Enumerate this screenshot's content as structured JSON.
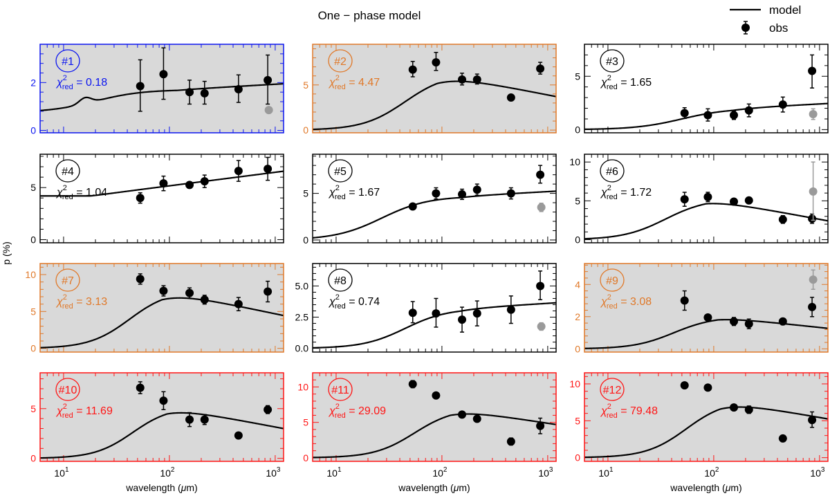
{
  "figure": {
    "title": "One − phase model",
    "ylabel": "p (%)",
    "xlabel_prefix": "wavelength (",
    "xlabel_mu": "μ",
    "xlabel_suffix": "m)",
    "legend": {
      "model": "model",
      "obs": "obs"
    },
    "chi_sub": "red",
    "xtick_labels": [
      {
        "base": "10",
        "exp": "1"
      },
      {
        "base": "10",
        "exp": "2"
      },
      {
        "base": "10",
        "exp": "3"
      }
    ]
  },
  "colors": {
    "blue": "#0a14f0",
    "orange": "#e07828",
    "red": "#ff1414",
    "black": "#000000",
    "gray": "#9a9a9a",
    "panel_bg": "#d9d9d9"
  },
  "chart_data": {
    "type": "scatter+line",
    "x_scale": "log",
    "xlim": [
      6,
      1200
    ],
    "x_ticks": [
      10,
      100,
      1000
    ],
    "panels": [
      {
        "id": "#1",
        "chi2": "0.18",
        "color": "blue",
        "shaded": true,
        "ylim": [
          -0.1,
          3.6
        ],
        "yticks": [
          0,
          2
        ],
        "ytick_labels": [
          "0",
          "2"
        ],
        "model": {
          "onset": 20,
          "width": 0.22,
          "plateau": 0.75,
          "bump_at": 16,
          "bump_h": 0.25,
          "peak": 1.7,
          "peak_at": 120,
          "late_slope": 0.25
        },
        "obs": [
          {
            "x": 53,
            "y": 1.85,
            "elo": 1.05,
            "ehi": 1.1
          },
          {
            "x": 88,
            "y": 2.35,
            "elo": 1.05,
            "ehi": 1.1
          },
          {
            "x": 155,
            "y": 1.6,
            "elo": 0.5,
            "ehi": 0.5
          },
          {
            "x": 215,
            "y": 1.55,
            "elo": 0.45,
            "ehi": 0.5
          },
          {
            "x": 450,
            "y": 1.72,
            "elo": 0.55,
            "ehi": 0.6
          },
          {
            "x": 850,
            "y": 2.1,
            "elo": 1.0,
            "ehi": 1.05
          },
          {
            "x": 870,
            "y": 0.85,
            "elo": 0,
            "ehi": 0,
            "gray": true
          }
        ]
      },
      {
        "id": "#2",
        "chi2": "4.47",
        "color": "orange",
        "shaded": true,
        "ylim": [
          -0.3,
          9.5
        ],
        "yticks": [
          0,
          5
        ],
        "ytick_labels": [
          "0",
          "5"
        ],
        "model": {
          "onset": 45,
          "width": 0.2,
          "plateau": 0,
          "bump_at": 0,
          "bump_h": 0,
          "peak": 6.3,
          "peak_at": 90,
          "late_slope": -2.3
        },
        "obs": [
          {
            "x": 53,
            "y": 6.7,
            "elo": 0.8,
            "ehi": 0.9
          },
          {
            "x": 88,
            "y": 7.5,
            "elo": 0.9,
            "ehi": 1.1
          },
          {
            "x": 155,
            "y": 5.6,
            "elo": 0.6,
            "ehi": 0.7
          },
          {
            "x": 215,
            "y": 5.6,
            "elo": 0.5,
            "ehi": 0.6
          },
          {
            "x": 450,
            "y": 3.6,
            "elo": 0.3,
            "ehi": 0.3
          },
          {
            "x": 850,
            "y": 6.8,
            "elo": 0.6,
            "ehi": 0.7
          }
        ]
      },
      {
        "id": "#3",
        "chi2": "1.65",
        "color": "black",
        "shaded": false,
        "ylim": [
          -0.3,
          8.0
        ],
        "yticks": [
          0,
          5
        ],
        "ytick_labels": [
          "0",
          "5"
        ],
        "model": {
          "onset": 50,
          "width": 0.22,
          "plateau": 0,
          "bump_at": 0,
          "bump_h": 0,
          "peak": 2.0,
          "peak_at": 150,
          "late_slope": 0.5
        },
        "obs": [
          {
            "x": 53,
            "y": 1.55,
            "elo": 0.5,
            "ehi": 0.5
          },
          {
            "x": 88,
            "y": 1.35,
            "elo": 0.55,
            "ehi": 0.6
          },
          {
            "x": 155,
            "y": 1.35,
            "elo": 0.4,
            "ehi": 0.4
          },
          {
            "x": 215,
            "y": 1.8,
            "elo": 0.6,
            "ehi": 0.6
          },
          {
            "x": 450,
            "y": 2.35,
            "elo": 0.7,
            "ehi": 0.7
          },
          {
            "x": 850,
            "y": 5.5,
            "elo": 1.6,
            "ehi": 1.5
          },
          {
            "x": 870,
            "y": 1.45,
            "elo": 0.5,
            "ehi": 0.5,
            "gray": true
          }
        ]
      },
      {
        "id": "#4",
        "chi2": "1.04",
        "color": "black",
        "shaded": false,
        "ylim": [
          -0.3,
          8.2
        ],
        "yticks": [
          0,
          5
        ],
        "ytick_labels": [
          "0",
          "5"
        ],
        "model": {
          "onset": 13,
          "width": 0.1,
          "plateau": 4.2,
          "bump_at": 0,
          "bump_h": 0,
          "peak": 4.2,
          "peak_at": 18,
          "late_slope": 1.3
        },
        "obs": [
          {
            "x": 53,
            "y": 4.0,
            "elo": 0.5,
            "ehi": 0.5
          },
          {
            "x": 88,
            "y": 5.4,
            "elo": 0.7,
            "ehi": 0.7
          },
          {
            "x": 155,
            "y": 5.25,
            "elo": 0.3,
            "ehi": 0.3
          },
          {
            "x": 215,
            "y": 5.6,
            "elo": 0.6,
            "ehi": 0.6
          },
          {
            "x": 450,
            "y": 6.6,
            "elo": 1.0,
            "ehi": 1.0
          },
          {
            "x": 850,
            "y": 6.8,
            "elo": 1.1,
            "ehi": 1.1
          }
        ]
      },
      {
        "id": "#5",
        "chi2": "1.67",
        "color": "black",
        "shaded": false,
        "ylim": [
          -0.3,
          9.2
        ],
        "yticks": [
          0,
          5
        ],
        "ytick_labels": [
          "0",
          "5"
        ],
        "model": {
          "onset": 27,
          "width": 0.22,
          "plateau": 0,
          "bump_at": 0,
          "bump_h": 0,
          "peak": 4.7,
          "peak_at": 150,
          "late_slope": 0.6
        },
        "obs": [
          {
            "x": 53,
            "y": 3.6,
            "elo": 0.2,
            "ehi": 0.2
          },
          {
            "x": 88,
            "y": 5.0,
            "elo": 0.6,
            "ehi": 0.6
          },
          {
            "x": 155,
            "y": 4.9,
            "elo": 0.55,
            "ehi": 0.55
          },
          {
            "x": 215,
            "y": 5.4,
            "elo": 0.6,
            "ehi": 0.6
          },
          {
            "x": 450,
            "y": 5.0,
            "elo": 0.6,
            "ehi": 0.6
          },
          {
            "x": 850,
            "y": 7.0,
            "elo": 0.9,
            "ehi": 1.0
          },
          {
            "x": 870,
            "y": 3.5,
            "elo": 0.45,
            "ehi": 0.45,
            "gray": true
          }
        ]
      },
      {
        "id": "#6",
        "chi2": "1.72",
        "color": "black",
        "shaded": false,
        "ylim": [
          -0.4,
          11.0
        ],
        "yticks": [
          0,
          5,
          10
        ],
        "ytick_labels": [
          "0",
          "5",
          "10"
        ],
        "model": {
          "onset": 35,
          "width": 0.2,
          "plateau": 0,
          "bump_at": 0,
          "bump_h": 0,
          "peak": 5.3,
          "peak_at": 85,
          "late_slope": -2.5
        },
        "obs": [
          {
            "x": 53,
            "y": 5.2,
            "elo": 0.9,
            "ehi": 0.9
          },
          {
            "x": 88,
            "y": 5.5,
            "elo": 0.6,
            "ehi": 0.6
          },
          {
            "x": 155,
            "y": 4.9,
            "elo": 0.4,
            "ehi": 0.4
          },
          {
            "x": 215,
            "y": 5.05,
            "elo": 0.35,
            "ehi": 0.35
          },
          {
            "x": 450,
            "y": 2.6,
            "elo": 0.5,
            "ehi": 0.5
          },
          {
            "x": 850,
            "y": 2.7,
            "elo": 0.6,
            "ehi": 0.6
          },
          {
            "x": 870,
            "y": 6.2,
            "elo": 3.7,
            "ehi": 3.8,
            "gray": true
          }
        ]
      },
      {
        "id": "#7",
        "chi2": "3.13",
        "color": "orange",
        "shaded": true,
        "ylim": [
          -0.5,
          11.5
        ],
        "yticks": [
          0,
          5,
          10
        ],
        "ytick_labels": [
          "0",
          "5",
          "10"
        ],
        "model": {
          "onset": 42,
          "width": 0.19,
          "plateau": 0,
          "bump_at": 0,
          "bump_h": 0,
          "peak": 7.9,
          "peak_at": 85,
          "late_slope": -3.0
        },
        "obs": [
          {
            "x": 53,
            "y": 9.4,
            "elo": 0.7,
            "ehi": 0.7
          },
          {
            "x": 88,
            "y": 7.8,
            "elo": 0.7,
            "ehi": 0.7
          },
          {
            "x": 155,
            "y": 7.5,
            "elo": 0.7,
            "ehi": 0.7
          },
          {
            "x": 215,
            "y": 6.6,
            "elo": 0.6,
            "ehi": 0.6
          },
          {
            "x": 450,
            "y": 6.0,
            "elo": 0.9,
            "ehi": 0.9
          },
          {
            "x": 850,
            "y": 7.7,
            "elo": 1.4,
            "ehi": 1.4
          }
        ]
      },
      {
        "id": "#8",
        "chi2": "0.74",
        "color": "black",
        "shaded": false,
        "ylim": [
          -0.3,
          6.8
        ],
        "yticks": [
          0,
          2.5,
          5
        ],
        "ytick_labels": [
          "0.0",
          "2.5",
          "5.0"
        ],
        "model": {
          "onset": 45,
          "width": 0.2,
          "plateau": 0,
          "bump_at": 0,
          "bump_h": 0,
          "peak": 3.2,
          "peak_at": 150,
          "late_slope": 0.5
        },
        "obs": [
          {
            "x": 53,
            "y": 2.85,
            "elo": 0.8,
            "ehi": 0.9
          },
          {
            "x": 88,
            "y": 2.8,
            "elo": 1.1,
            "ehi": 1.2
          },
          {
            "x": 155,
            "y": 2.3,
            "elo": 1.0,
            "ehi": 1.0
          },
          {
            "x": 215,
            "y": 2.8,
            "elo": 1.0,
            "ehi": 1.0
          },
          {
            "x": 450,
            "y": 3.1,
            "elo": 1.1,
            "ehi": 1.1
          },
          {
            "x": 850,
            "y": 5.0,
            "elo": 1.1,
            "ehi": 1.2
          },
          {
            "x": 870,
            "y": 1.75,
            "elo": 0.3,
            "ehi": 0.3,
            "gray": true
          }
        ]
      },
      {
        "id": "#9",
        "chi2": "3.08",
        "color": "orange",
        "shaded": true,
        "ylim": [
          -0.2,
          5.3
        ],
        "yticks": [
          0,
          2,
          4
        ],
        "ytick_labels": [
          "0",
          "2",
          "4"
        ],
        "model": {
          "onset": 42,
          "width": 0.19,
          "plateau": 0,
          "bump_at": 0,
          "bump_h": 0,
          "peak": 2.0,
          "peak_at": 110,
          "late_slope": -0.7
        },
        "obs": [
          {
            "x": 53,
            "y": 3.0,
            "elo": 0.6,
            "ehi": 0.6
          },
          {
            "x": 88,
            "y": 1.95,
            "elo": 0.1,
            "ehi": 0.1
          },
          {
            "x": 155,
            "y": 1.7,
            "elo": 0.25,
            "ehi": 0.25
          },
          {
            "x": 215,
            "y": 1.55,
            "elo": 0.3,
            "ehi": 0.3
          },
          {
            "x": 450,
            "y": 1.7,
            "elo": 0.2,
            "ehi": 0.2
          },
          {
            "x": 850,
            "y": 2.6,
            "elo": 0.6,
            "ehi": 0.6
          },
          {
            "x": 870,
            "y": 4.3,
            "elo": 0.6,
            "ehi": 0.6,
            "gray": true
          }
        ]
      },
      {
        "id": "#10",
        "chi2": "11.69",
        "color": "red",
        "shaded": true,
        "ylim": [
          -0.3,
          8.6
        ],
        "yticks": [
          0,
          5
        ],
        "ytick_labels": [
          "0",
          "5"
        ],
        "model": {
          "onset": 45,
          "width": 0.18,
          "plateau": 0,
          "bump_at": 0,
          "bump_h": 0,
          "peak": 5.2,
          "peak_at": 95,
          "late_slope": -2.0
        },
        "obs": [
          {
            "x": 53,
            "y": 7.1,
            "elo": 0.6,
            "ehi": 0.6
          },
          {
            "x": 88,
            "y": 5.8,
            "elo": 0.9,
            "ehi": 0.9
          },
          {
            "x": 155,
            "y": 3.9,
            "elo": 0.7,
            "ehi": 0.7
          },
          {
            "x": 215,
            "y": 3.9,
            "elo": 0.5,
            "ehi": 0.5
          },
          {
            "x": 450,
            "y": 2.3,
            "elo": 0.3,
            "ehi": 0.3
          },
          {
            "x": 850,
            "y": 4.9,
            "elo": 0.4,
            "ehi": 0.4
          }
        ]
      },
      {
        "id": "#11",
        "chi2": "29.09",
        "color": "red",
        "shaded": true,
        "ylim": [
          -0.5,
          12.0
        ],
        "yticks": [
          0,
          5,
          10
        ],
        "ytick_labels": [
          "0",
          "5",
          "10"
        ],
        "model": {
          "onset": 55,
          "width": 0.19,
          "plateau": 0,
          "bump_at": 0,
          "bump_h": 0,
          "peak": 7.0,
          "peak_at": 120,
          "late_slope": -2.3
        },
        "obs": [
          {
            "x": 53,
            "y": 10.4,
            "elo": 0.5,
            "ehi": 0.5
          },
          {
            "x": 88,
            "y": 8.8,
            "elo": 0.3,
            "ehi": 0.3
          },
          {
            "x": 155,
            "y": 6.1,
            "elo": 0.4,
            "ehi": 0.4
          },
          {
            "x": 215,
            "y": 5.5,
            "elo": 0.3,
            "ehi": 0.3
          },
          {
            "x": 450,
            "y": 2.3,
            "elo": 0.5,
            "ehi": 0.5
          },
          {
            "x": 850,
            "y": 4.5,
            "elo": 1.1,
            "ehi": 1.1
          }
        ]
      },
      {
        "id": "#12",
        "chi2": "79.48",
        "color": "red",
        "shaded": true,
        "ylim": [
          -0.5,
          11.5
        ],
        "yticks": [
          0,
          5,
          10
        ],
        "ytick_labels": [
          "0",
          "5",
          "10"
        ],
        "model": {
          "onset": 55,
          "width": 0.19,
          "plateau": 0,
          "bump_at": 0,
          "bump_h": 0,
          "peak": 7.8,
          "peak_at": 115,
          "late_slope": -2.5
        },
        "obs": [
          {
            "x": 53,
            "y": 9.8,
            "elo": 0.2,
            "ehi": 0.2
          },
          {
            "x": 88,
            "y": 9.5,
            "elo": 0.2,
            "ehi": 0.2
          },
          {
            "x": 155,
            "y": 6.8,
            "elo": 0.4,
            "ehi": 0.4
          },
          {
            "x": 215,
            "y": 6.5,
            "elo": 0.5,
            "ehi": 0.5
          },
          {
            "x": 450,
            "y": 2.6,
            "elo": 0.3,
            "ehi": 0.3
          },
          {
            "x": 850,
            "y": 5.1,
            "elo": 1.0,
            "ehi": 1.1
          }
        ]
      }
    ]
  }
}
